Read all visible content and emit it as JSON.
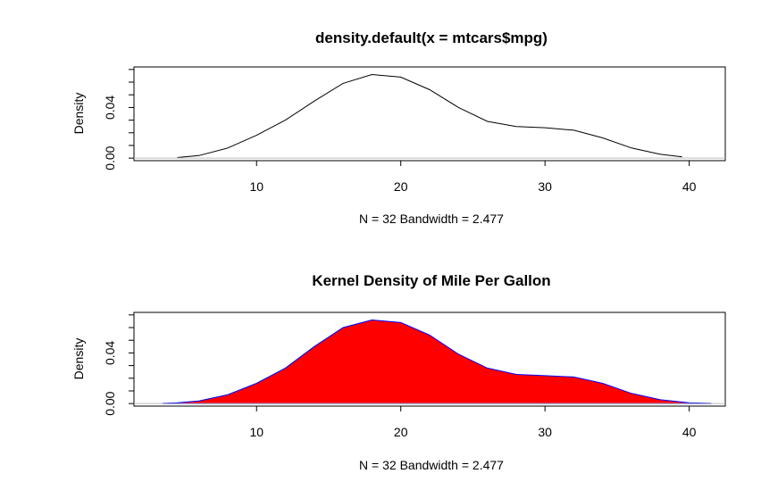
{
  "chart_data": [
    {
      "type": "line",
      "title": "density.default(x = mtcars$mpg)",
      "xlabel": "N = 32   Bandwidth = 2.477",
      "ylabel": "Density",
      "xlim": [
        1.5,
        42.5
      ],
      "ylim": [
        -0.002,
        0.072
      ],
      "x_ticks": [
        "10",
        "20",
        "30",
        "40"
      ],
      "y_ticks": [
        "0.00",
        "0.04"
      ],
      "line_color": "#000000",
      "fill": null,
      "grid": false,
      "series": [
        {
          "x": [
            4.5,
            6,
            8,
            10,
            12,
            14,
            16,
            18,
            20,
            22,
            24,
            26,
            28,
            30,
            32,
            34,
            36,
            38,
            39.5
          ],
          "y": [
            0.0005,
            0.002,
            0.008,
            0.018,
            0.03,
            0.045,
            0.059,
            0.066,
            0.064,
            0.054,
            0.04,
            0.029,
            0.025,
            0.024,
            0.022,
            0.016,
            0.008,
            0.003,
            0.001
          ]
        }
      ]
    },
    {
      "type": "area",
      "title": "Kernel Density of Mile Per Gallon",
      "xlabel": "N = 32   Bandwidth = 2.477",
      "ylabel": "Density",
      "xlim": [
        1.5,
        42.5
      ],
      "ylim": [
        -0.002,
        0.072
      ],
      "x_ticks": [
        "10",
        "20",
        "30",
        "40"
      ],
      "y_ticks": [
        "0.00",
        "0.04"
      ],
      "line_color": "#0000ff",
      "fill": "#ff0000",
      "grid": false,
      "series": [
        {
          "x": [
            3.5,
            4.5,
            6,
            8,
            10,
            12,
            14,
            16,
            18,
            20,
            22,
            24,
            26,
            28,
            30,
            32,
            34,
            36,
            38,
            40,
            41.5
          ],
          "y": [
            0.0002,
            0.0006,
            0.002,
            0.007,
            0.016,
            0.028,
            0.045,
            0.06,
            0.066,
            0.064,
            0.054,
            0.039,
            0.028,
            0.023,
            0.022,
            0.021,
            0.016,
            0.008,
            0.003,
            0.0007,
            0.0002
          ]
        }
      ]
    }
  ]
}
